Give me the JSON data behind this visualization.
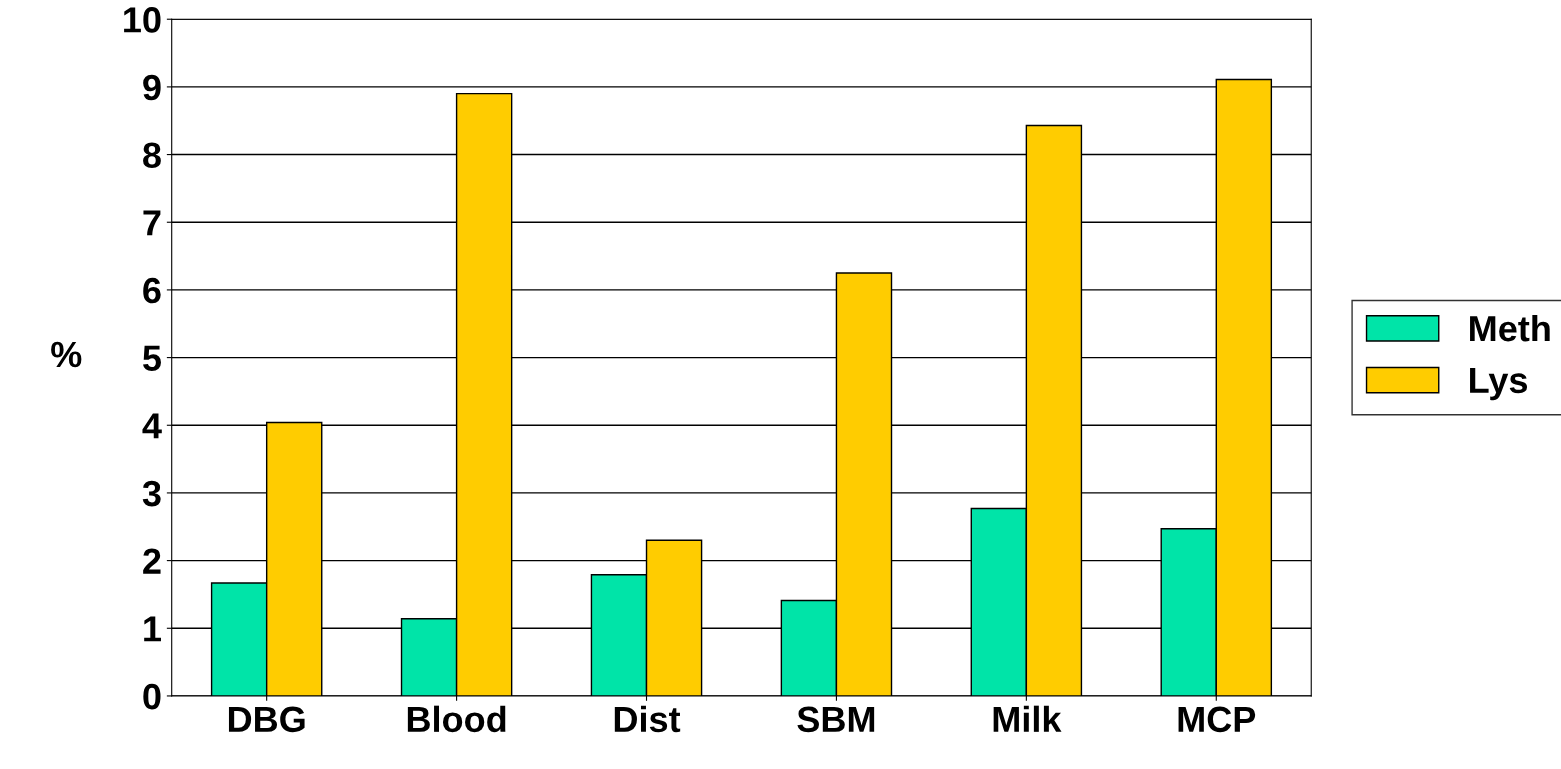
{
  "chart_data": {
    "type": "bar",
    "ylabel": "%",
    "categories": [
      "DBG",
      "Blood",
      "Dist",
      "SBM",
      "Milk",
      "MCP"
    ],
    "series": [
      {
        "name": "Meth",
        "color": "#00e4a8",
        "values": [
          1.67,
          1.14,
          1.79,
          1.41,
          2.77,
          2.47
        ]
      },
      {
        "name": "Lys",
        "color": "#ffcc00",
        "values": [
          4.04,
          8.9,
          2.3,
          6.25,
          8.43,
          9.11
        ]
      }
    ],
    "ylim": [
      0,
      10
    ],
    "yticks": [
      0,
      1,
      2,
      3,
      4,
      5,
      6,
      7,
      8,
      9,
      10
    ],
    "grid": "y",
    "legend": "right"
  }
}
